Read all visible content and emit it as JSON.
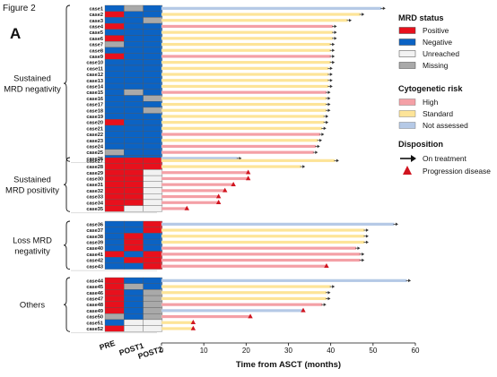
{
  "figure_label": "Figure 2",
  "panel_letter": "A",
  "colors": {
    "Positive": "#e8101c",
    "Negative": "#0b63c4",
    "Unreached": "#f2f2f2",
    "Missing": "#a9a9a9",
    "High": "#f4a0a6",
    "Standard": "#fde498",
    "Not assessed": "#b5c9e6",
    "progression": "#d0141f",
    "arrow": "#333333"
  },
  "legend": {
    "mrd_title": "MRD status",
    "mrd_items": [
      "Positive",
      "Negative",
      "Unreached",
      "Missing"
    ],
    "cyto_title": "Cytogenetic risk",
    "cyto_items": [
      "High",
      "Standard",
      "Not assessed"
    ],
    "disp_title": "Disposition",
    "disp_items": [
      "On treatment",
      "Progression disease"
    ]
  },
  "chart_data": {
    "type": "bar",
    "orientation": "horizontal",
    "xlabel": "Time from ASCT (months)",
    "xlim": [
      0,
      60
    ],
    "xticks": [
      0,
      10,
      20,
      30,
      40,
      50,
      60
    ],
    "mrd_columns": [
      "PRE",
      "POST1",
      "POST2"
    ],
    "groups": [
      {
        "label_lines": [
          "Sustained",
          "MRD negativity"
        ],
        "cases": [
          {
            "case": "case1",
            "mrd": [
              "Negative",
              "Missing",
              "Negative"
            ],
            "cyto": "Not assessed",
            "months": 52,
            "status": "On treatment"
          },
          {
            "case": "case2",
            "mrd": [
              "Positive",
              "Negative",
              "Negative"
            ],
            "cyto": "Standard",
            "months": 47,
            "status": "On treatment"
          },
          {
            "case": "case3",
            "mrd": [
              "Negative",
              "Negative",
              "Missing"
            ],
            "cyto": "Standard",
            "months": 44,
            "status": "On treatment"
          },
          {
            "case": "case4",
            "mrd": [
              "Positive",
              "Negative",
              "Negative"
            ],
            "cyto": "High",
            "months": 40.5,
            "status": "On treatment"
          },
          {
            "case": "case5",
            "mrd": [
              "Negative",
              "Negative",
              "Negative"
            ],
            "cyto": "Standard",
            "months": 40.5,
            "status": "On treatment"
          },
          {
            "case": "case6",
            "mrd": [
              "Positive",
              "Negative",
              "Negative"
            ],
            "cyto": "Standard",
            "months": 40.5,
            "status": "On treatment"
          },
          {
            "case": "case7",
            "mrd": [
              "Missing",
              "Negative",
              "Negative"
            ],
            "cyto": "Standard",
            "months": 40,
            "status": "On treatment"
          },
          {
            "case": "case8",
            "mrd": [
              "Negative",
              "Negative",
              "Negative"
            ],
            "cyto": "Standard",
            "months": 40,
            "status": "On treatment"
          },
          {
            "case": "case9",
            "mrd": [
              "Positive",
              "Negative",
              "Negative"
            ],
            "cyto": "High",
            "months": 40,
            "status": "On treatment"
          },
          {
            "case": "case10",
            "mrd": [
              "Negative",
              "Negative",
              "Negative"
            ],
            "cyto": "Standard",
            "months": 40,
            "status": "On treatment"
          },
          {
            "case": "case11",
            "mrd": [
              "Negative",
              "Negative",
              "Negative"
            ],
            "cyto": "Standard",
            "months": 39.5,
            "status": "On treatment"
          },
          {
            "case": "case12",
            "mrd": [
              "Negative",
              "Negative",
              "Negative"
            ],
            "cyto": "Standard",
            "months": 39.5,
            "status": "On treatment"
          },
          {
            "case": "case13",
            "mrd": [
              "Negative",
              "Negative",
              "Negative"
            ],
            "cyto": "Standard",
            "months": 39.5,
            "status": "On treatment"
          },
          {
            "case": "case14",
            "mrd": [
              "Negative",
              "Negative",
              "Negative"
            ],
            "cyto": "Standard",
            "months": 39.5,
            "status": "On treatment"
          },
          {
            "case": "case15",
            "mrd": [
              "Negative",
              "Missing",
              "Negative"
            ],
            "cyto": "High",
            "months": 39,
            "status": "On treatment"
          },
          {
            "case": "case16",
            "mrd": [
              "Negative",
              "Negative",
              "Missing"
            ],
            "cyto": "Standard",
            "months": 39,
            "status": "On treatment"
          },
          {
            "case": "case17",
            "mrd": [
              "Negative",
              "Negative",
              "Negative"
            ],
            "cyto": "Standard",
            "months": 39,
            "status": "On treatment"
          },
          {
            "case": "case18",
            "mrd": [
              "Negative",
              "Negative",
              "Missing"
            ],
            "cyto": "Standard",
            "months": 39,
            "status": "On treatment"
          },
          {
            "case": "case19",
            "mrd": [
              "Negative",
              "Negative",
              "Negative"
            ],
            "cyto": "Standard",
            "months": 38.5,
            "status": "On treatment"
          },
          {
            "case": "case20",
            "mrd": [
              "Positive",
              "Negative",
              "Negative"
            ],
            "cyto": "Standard",
            "months": 38.5,
            "status": "On treatment"
          },
          {
            "case": "case21",
            "mrd": [
              "Negative",
              "Negative",
              "Negative"
            ],
            "cyto": "Standard",
            "months": 38,
            "status": "On treatment"
          },
          {
            "case": "case22",
            "mrd": [
              "Negative",
              "Negative",
              "Negative"
            ],
            "cyto": "High",
            "months": 37.5,
            "status": "On treatment"
          },
          {
            "case": "case23",
            "mrd": [
              "Negative",
              "Negative",
              "Negative"
            ],
            "cyto": "Standard",
            "months": 37,
            "status": "On treatment"
          },
          {
            "case": "case24",
            "mrd": [
              "Negative",
              "Negative",
              "Negative"
            ],
            "cyto": "High",
            "months": 36.5,
            "status": "On treatment"
          },
          {
            "case": "case25",
            "mrd": [
              "Missing",
              "Negative",
              "Negative"
            ],
            "cyto": "High",
            "months": 36,
            "status": "On treatment"
          },
          {
            "case": "case26",
            "mrd": [
              "Negative",
              "Negative",
              "Negative"
            ],
            "cyto": "Not assessed",
            "months": 18,
            "status": "On treatment"
          }
        ]
      },
      {
        "label_lines": [
          "Sustained",
          "MRD positivity"
        ],
        "cases": [
          {
            "case": "case27",
            "mrd": [
              "Positive",
              "Positive",
              "Positive"
            ],
            "cyto": "Standard",
            "months": 41,
            "status": "On treatment"
          },
          {
            "case": "case28",
            "mrd": [
              "Positive",
              "Positive",
              "Positive"
            ],
            "cyto": "Standard",
            "months": 33,
            "status": "On treatment"
          },
          {
            "case": "case29",
            "mrd": [
              "Positive",
              "Positive",
              "Unreached"
            ],
            "cyto": "High",
            "months": 20.5,
            "status": "Progression disease"
          },
          {
            "case": "case30",
            "mrd": [
              "Positive",
              "Positive",
              "Unreached"
            ],
            "cyto": "High",
            "months": 20.5,
            "status": "Progression disease"
          },
          {
            "case": "case31",
            "mrd": [
              "Positive",
              "Positive",
              "Unreached"
            ],
            "cyto": "High",
            "months": 17,
            "status": "Progression disease"
          },
          {
            "case": "case32",
            "mrd": [
              "Positive",
              "Positive",
              "Unreached"
            ],
            "cyto": "High",
            "months": 15,
            "status": "Progression disease"
          },
          {
            "case": "case33",
            "mrd": [
              "Positive",
              "Positive",
              "Unreached"
            ],
            "cyto": "High",
            "months": 13.5,
            "status": "Progression disease"
          },
          {
            "case": "case34",
            "mrd": [
              "Positive",
              "Positive",
              "Unreached"
            ],
            "cyto": "High",
            "months": 13.5,
            "status": "Progression disease"
          },
          {
            "case": "case35",
            "mrd": [
              "Positive",
              "Unreached",
              "Unreached"
            ],
            "cyto": "High",
            "months": 6,
            "status": "Progression disease"
          }
        ]
      },
      {
        "label_lines": [
          "Loss MRD",
          "negativity"
        ],
        "cases": [
          {
            "case": "case36",
            "mrd": [
              "Negative",
              "Negative",
              "Positive"
            ],
            "cyto": "Not assessed",
            "months": 55,
            "status": "On treatment"
          },
          {
            "case": "case37",
            "mrd": [
              "Negative",
              "Negative",
              "Positive"
            ],
            "cyto": "Standard",
            "months": 48,
            "status": "On treatment"
          },
          {
            "case": "case38",
            "mrd": [
              "Negative",
              "Positive",
              "Negative"
            ],
            "cyto": "Standard",
            "months": 48,
            "status": "On treatment"
          },
          {
            "case": "case39",
            "mrd": [
              "Negative",
              "Positive",
              "Negative"
            ],
            "cyto": "Standard",
            "months": 48,
            "status": "On treatment"
          },
          {
            "case": "case40",
            "mrd": [
              "Negative",
              "Positive",
              "Negative"
            ],
            "cyto": "High",
            "months": 46,
            "status": "On treatment"
          },
          {
            "case": "case41",
            "mrd": [
              "Positive",
              "Negative",
              "Positive"
            ],
            "cyto": "High",
            "months": 47,
            "status": "On treatment"
          },
          {
            "case": "case42",
            "mrd": [
              "Negative",
              "Positive",
              "Positive"
            ],
            "cyto": "High",
            "months": 47,
            "status": "On treatment"
          },
          {
            "case": "case43",
            "mrd": [
              "Negative",
              "Negative",
              "Positive"
            ],
            "cyto": "High",
            "months": 39,
            "status": "Progression disease"
          }
        ]
      },
      {
        "label_lines": [
          "Others"
        ],
        "cases": [
          {
            "case": "case44",
            "mrd": [
              "Positive",
              "Negative",
              "Negative"
            ],
            "cyto": "Not assessed",
            "months": 58,
            "status": "On treatment"
          },
          {
            "case": "case45",
            "mrd": [
              "Positive",
              "Missing",
              "Negative"
            ],
            "cyto": "Standard",
            "months": 40,
            "status": "On treatment"
          },
          {
            "case": "case46",
            "mrd": [
              "Positive",
              "Negative",
              "Missing"
            ],
            "cyto": "Standard",
            "months": 39,
            "status": "On treatment"
          },
          {
            "case": "case47",
            "mrd": [
              "Positive",
              "Negative",
              "Missing"
            ],
            "cyto": "Standard",
            "months": 39,
            "status": "On treatment"
          },
          {
            "case": "case48",
            "mrd": [
              "Positive",
              "Negative",
              "Missing"
            ],
            "cyto": "High",
            "months": 38,
            "status": "On treatment"
          },
          {
            "case": "case49",
            "mrd": [
              "Positive",
              "Negative",
              "Missing"
            ],
            "cyto": "Not assessed",
            "months": 33.5,
            "status": "Progression disease"
          },
          {
            "case": "case50",
            "mrd": [
              "Missing",
              "Negative",
              "Missing"
            ],
            "cyto": "High",
            "months": 21,
            "status": "Progression disease"
          },
          {
            "case": "case51",
            "mrd": [
              "Negative",
              "Unreached",
              "Unreached"
            ],
            "cyto": "Standard",
            "months": 7.5,
            "status": "Progression disease"
          },
          {
            "case": "case52",
            "mrd": [
              "Positive",
              "Unreached",
              "Unreached"
            ],
            "cyto": "Standard",
            "months": 7.5,
            "status": "Progression disease"
          }
        ]
      }
    ]
  }
}
